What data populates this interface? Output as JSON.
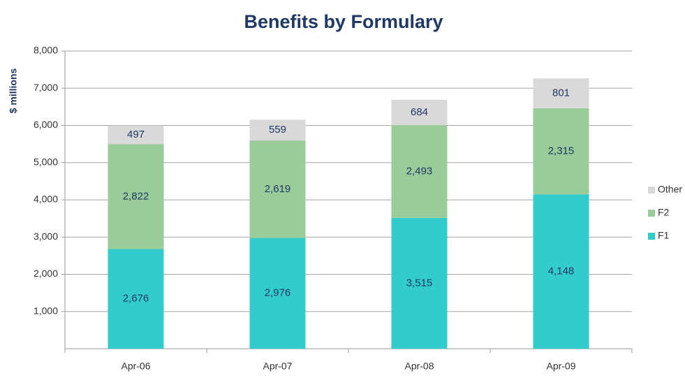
{
  "chart_data": {
    "type": "stacked_bar",
    "title": "Benefits by Formulary",
    "y_label": "$ millions",
    "categories": [
      "Apr-06",
      "Apr-07",
      "Apr-08",
      "Apr-09"
    ],
    "series": [
      {
        "name": "F1",
        "color": "#33cccc",
        "values": [
          2676,
          2976,
          3515,
          4148
        ],
        "value_labels": [
          "2,676",
          "2,976",
          "3,515",
          "4,148"
        ]
      },
      {
        "name": "F2",
        "color": "#99cc99",
        "values": [
          2822,
          2619,
          2493,
          2315
        ],
        "value_labels": [
          "2,822",
          "2,619",
          "2,493",
          "2,315"
        ]
      },
      {
        "name": "Other",
        "color": "#d9d9d9",
        "values": [
          497,
          559,
          684,
          801
        ],
        "value_labels": [
          "497",
          "559",
          "684",
          "801"
        ]
      }
    ],
    "ylim": [
      0,
      8000
    ],
    "yticks": [
      {
        "value": 1000,
        "label": "1,000"
      },
      {
        "value": 2000,
        "label": "2,000"
      },
      {
        "value": 3000,
        "label": "3,000"
      },
      {
        "value": 4000,
        "label": "4,000"
      },
      {
        "value": 5000,
        "label": "5,000"
      },
      {
        "value": 6000,
        "label": "6,000"
      },
      {
        "value": 7000,
        "label": "7,000"
      },
      {
        "value": 8000,
        "label": "8,000"
      }
    ],
    "grid": true,
    "legend": "right"
  }
}
